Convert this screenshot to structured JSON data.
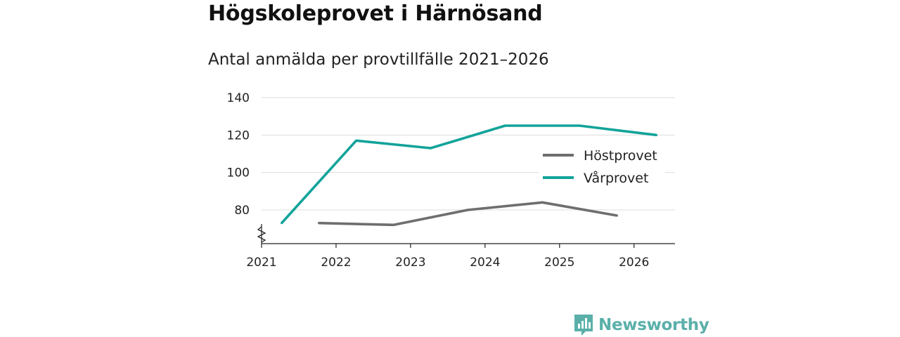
{
  "header": {
    "title": "Högskoleprovet i Härnösand",
    "subtitle": "Antal anmälda per provtillfälle 2021–2026"
  },
  "brand": {
    "name": "Newsworthy",
    "icon": "newsworthy-logo-icon",
    "color": "#5ab0a9"
  },
  "chart_data": {
    "type": "line",
    "title": "Antal anmälda per provtillfälle 2021–2026",
    "xlabel": "",
    "ylabel": "",
    "xlim": [
      2021,
      2026.55
    ],
    "ylim": [
      62,
      140
    ],
    "yticks": [
      80,
      100,
      120,
      140
    ],
    "xticks": [
      2021,
      2022,
      2023,
      2024,
      2025,
      2026
    ],
    "xtick_labels": [
      "2021",
      "2022",
      "2023",
      "2024",
      "2025",
      "2026"
    ],
    "ytick_labels": [
      "80",
      "100",
      "120",
      "140"
    ],
    "axis_break": true,
    "grid": true,
    "legend_position": "right",
    "series": [
      {
        "name": "Höstprovet",
        "color": "#6e6e6e",
        "x": [
          2021.77,
          2022.77,
          2023.77,
          2024.77,
          2025.77
        ],
        "y": [
          73,
          72,
          80,
          84,
          77
        ]
      },
      {
        "name": "Vårprovet",
        "color": "#12a39a",
        "x": [
          2021.27,
          2022.27,
          2023.27,
          2024.27,
          2025.27,
          2026.3
        ],
        "y": [
          73,
          117,
          113,
          125,
          125,
          120
        ]
      }
    ]
  }
}
